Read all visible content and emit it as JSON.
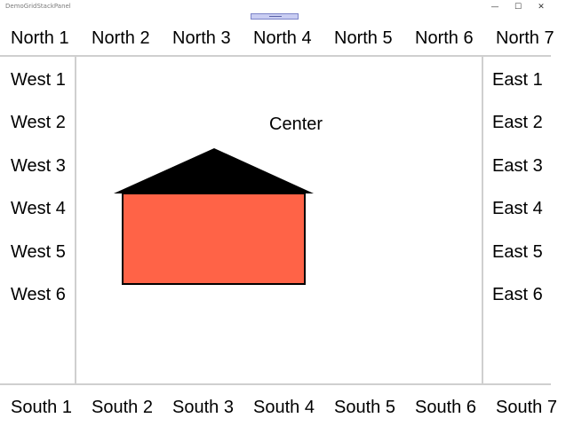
{
  "window": {
    "title": "DemoGridStackPanel",
    "minimize_glyph": "—",
    "maximize_glyph": "☐",
    "close_glyph": "✕"
  },
  "north": [
    "North 1",
    "North 2",
    "North 3",
    "North 4",
    "North 5",
    "North 6",
    "North 7"
  ],
  "south": [
    "South 1",
    "South 2",
    "South 3",
    "South 4",
    "South 5",
    "South 6",
    "South 7"
  ],
  "west": [
    "West 1",
    "West 2",
    "West 3",
    "West 4",
    "West 5",
    "West 6"
  ],
  "east": [
    "East 1",
    "East 2",
    "East 3",
    "East 4",
    "East 5",
    "East 6"
  ],
  "center": {
    "label": "Center"
  },
  "colors": {
    "roof": "#000000",
    "house_body": "#ff6347",
    "house_outline": "#000000",
    "divider": "#cfcfcf"
  }
}
